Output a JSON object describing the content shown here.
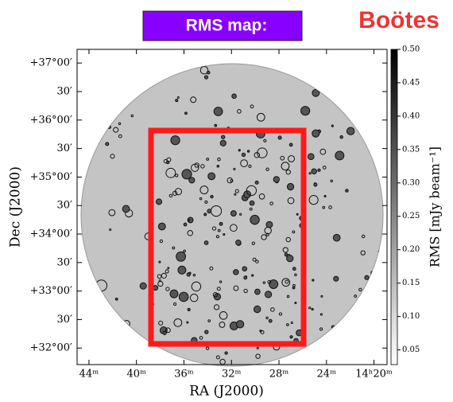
{
  "chart_data": {
    "type": "image",
    "title": "RMS map:",
    "annotation": "Boötes",
    "x_label": "RA (J2000)",
    "y_label": "Dec (J2000)",
    "colorbar_label": "RMS [mJy beam⁻¹]",
    "xlim": [
      45.0,
      18.9
    ],
    "xticks": [
      {
        "value": 44,
        "label": "44ᵐ"
      },
      {
        "value": 40,
        "label": "40ᵐ"
      },
      {
        "value": 36,
        "label": "36ᵐ"
      },
      {
        "value": 32,
        "label": "32ᵐ"
      },
      {
        "value": 28,
        "label": "28ᵐ"
      },
      {
        "value": 24,
        "label": "24ᵐ"
      },
      {
        "value": 20,
        "label": "14ʰ20ᵐ"
      }
    ],
    "ylim": [
      31.71,
      37.24
    ],
    "yticks": [
      {
        "value": 37,
        "label": "+37°00′"
      },
      {
        "value": 36.5,
        "label": "30′"
      },
      {
        "value": 36,
        "label": "+36°00′"
      },
      {
        "value": 35.5,
        "label": "30′"
      },
      {
        "value": 35,
        "label": "+35°00′"
      },
      {
        "value": 34.5,
        "label": "30′"
      },
      {
        "value": 34,
        "label": "+34°00′"
      },
      {
        "value": 33.5,
        "label": "30′"
      },
      {
        "value": 33,
        "label": "+33°00′"
      },
      {
        "value": 32.5,
        "label": "30′"
      },
      {
        "value": 32,
        "label": "+32°00′"
      }
    ],
    "zlim": [
      0.028,
      0.5
    ],
    "zticks": [
      {
        "value": 0.05,
        "label": "0.05"
      },
      {
        "value": 0.1,
        "label": "0.10"
      },
      {
        "value": 0.15,
        "label": "0.15"
      },
      {
        "value": 0.2,
        "label": "0.20"
      },
      {
        "value": 0.25,
        "label": "0.25"
      },
      {
        "value": 0.3,
        "label": "0.30"
      },
      {
        "value": 0.35,
        "label": "0.35"
      },
      {
        "value": 0.4,
        "label": "0.40"
      },
      {
        "value": 0.45,
        "label": "0.45"
      },
      {
        "value": 0.5,
        "label": "0.50"
      }
    ],
    "colormap": [
      "#ffffff",
      "#000000"
    ],
    "highlight_color": "#ff1a1a"
  }
}
